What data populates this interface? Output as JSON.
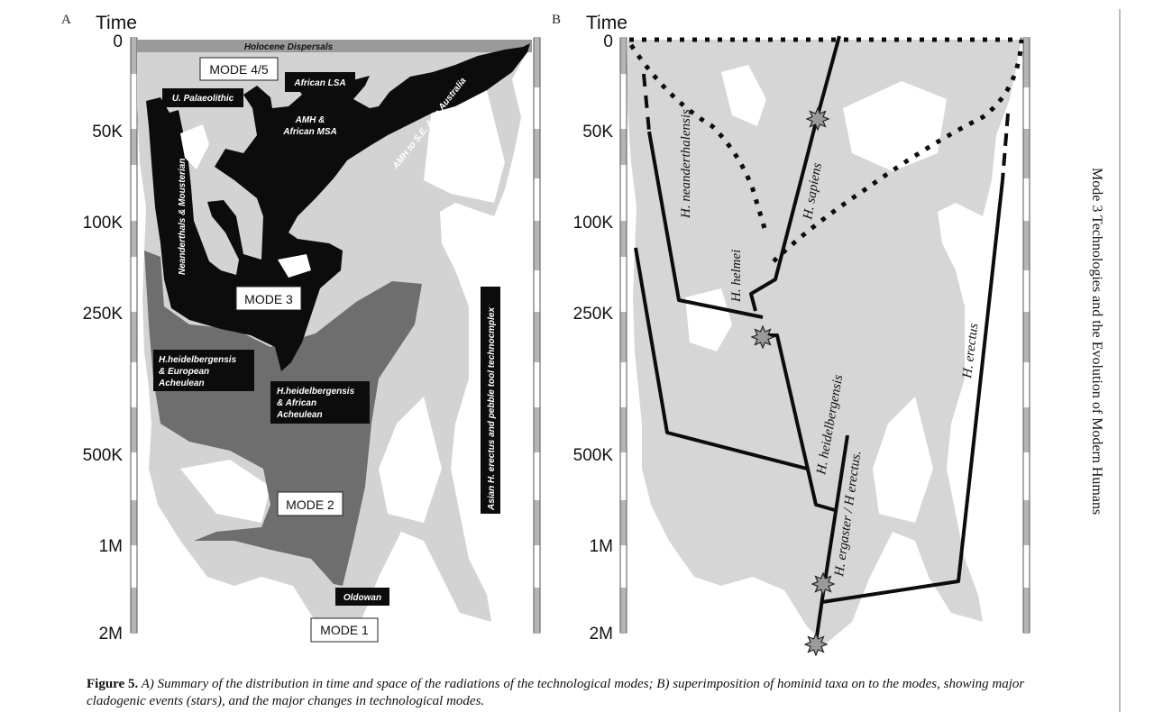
{
  "panel_a": {
    "letter": "A",
    "time_label": "Time",
    "ticks": [
      "0",
      "50K",
      "100K",
      "250K",
      "500K",
      "1M",
      "2M"
    ],
    "labels": {
      "holocene": "Holocene Dispersals",
      "mode45": "MODE 4/5",
      "african_lsa": "African LSA",
      "upper_pal": "U. Palaeolithic",
      "amh_msa_1": "AMH &",
      "amh_msa_2": "African MSA",
      "amh_asia": "AMH to S.E. Asia Australia",
      "neanderthals": "Neanderthals & Mousterian",
      "mode3": "MODE 3",
      "heid_eu_1": "H.heidelbergensis",
      "heid_eu_2": "& European",
      "heid_eu_3": "Acheulean",
      "heid_af_1": "H.heidelbergensis",
      "heid_af_2": "& African",
      "heid_af_3": "Acheulean",
      "asian_erectus": "Asian H. erectus and pebble tool technocmplex",
      "mode2": "MODE 2",
      "oldowan": "Oldowan",
      "mode1": "MODE 1"
    }
  },
  "panel_b": {
    "letter": "B",
    "time_label": "Time",
    "ticks": [
      "0",
      "50K",
      "100K",
      "250K",
      "500K",
      "1M",
      "2M"
    ],
    "taxa": {
      "neanderthalensis": "H. neanderthalensis",
      "helmei": "H. helmei",
      "sapiens": "H. sapiens",
      "heidelbergensis": "H. heidelbergensis",
      "ergaster": "H. ergaster / H erectus.",
      "erectus": "H. erectus"
    }
  },
  "side_title": "Mode 3 Technologies and the Evolution of Modern Humans",
  "caption": {
    "figure": "Figure 5.",
    "text": " A) Summary of the distribution in time and space of the radiations of the technological modes; B) superimposition of hominid taxa on to the modes, showing major cladogenic events (stars), and the major changes in technological modes."
  },
  "colors": {
    "light_grey": "#d3d3d3",
    "mid_grey": "#6e6e6e",
    "black": "#0c0c0c",
    "top_band": "#9a9a9a"
  }
}
